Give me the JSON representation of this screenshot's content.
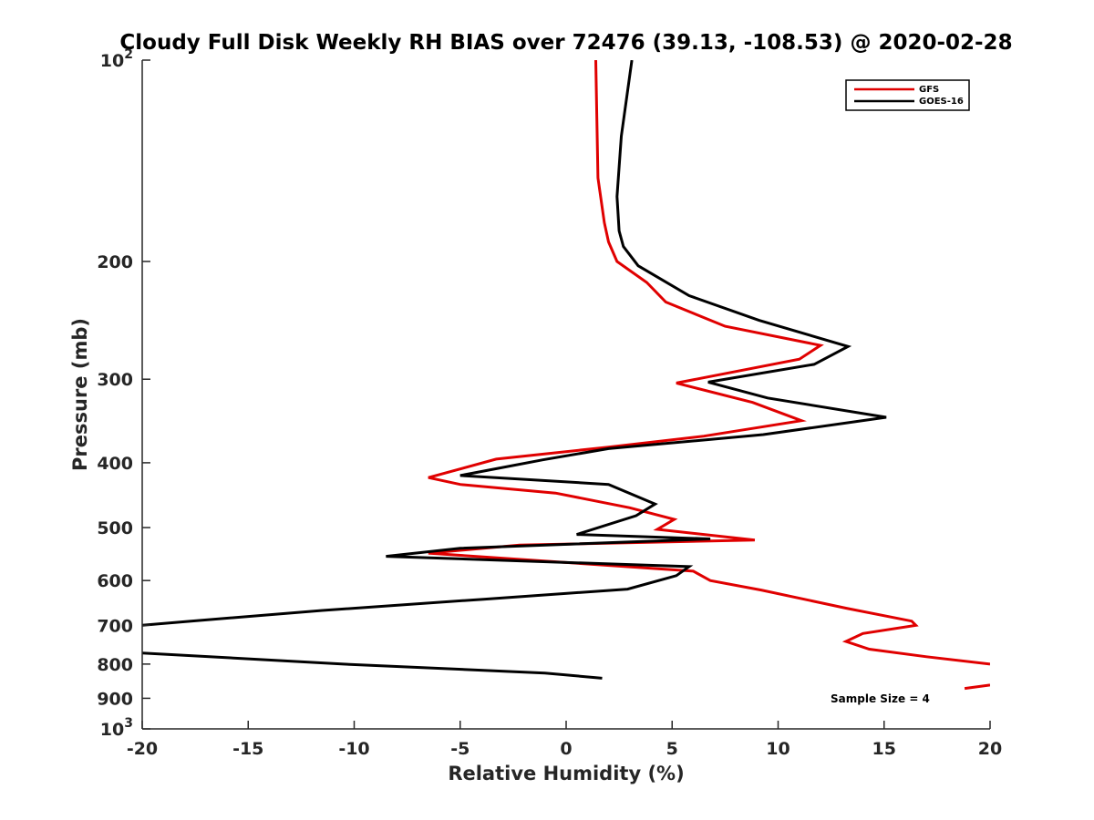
{
  "chart_data": {
    "type": "line",
    "title": "Cloudy Full Disk Weekly RH BIAS over 72476 (39.13, -108.53) @ 2020-02-28",
    "xlabel": "Relative Humidity (%)",
    "ylabel": "Pressure (mb)",
    "xlim": [
      -20,
      20
    ],
    "ylim": [
      100,
      1000
    ],
    "yscale": "log",
    "yreversed": true,
    "x_ticks": [
      "-20",
      "-15",
      "-10",
      "-5",
      "0",
      "5",
      "10",
      "15",
      "20"
    ],
    "y_ticks": [
      {
        "value": 100,
        "base": "10",
        "exp": "2"
      },
      {
        "value": 200,
        "label": "200"
      },
      {
        "value": 300,
        "label": "300"
      },
      {
        "value": 400,
        "label": "400"
      },
      {
        "value": 500,
        "label": "500"
      },
      {
        "value": 600,
        "label": "600"
      },
      {
        "value": 700,
        "label": "700"
      },
      {
        "value": 800,
        "label": "800"
      },
      {
        "value": 900,
        "label": "900"
      },
      {
        "value": 1000,
        "base": "10",
        "exp": "3"
      }
    ],
    "grid": false,
    "legend_position": "top-right",
    "annotation": "Sample Size = 4",
    "series": [
      {
        "name": "GFS",
        "color": "#e00000",
        "points": [
          [
            1.4,
            100
          ],
          [
            1.5,
            150
          ],
          [
            1.8,
            175
          ],
          [
            2.0,
            187
          ],
          [
            2.4,
            200
          ],
          [
            3.8,
            215
          ],
          [
            4.7,
            230
          ],
          [
            7.5,
            250
          ],
          [
            12.0,
            267
          ],
          [
            11.0,
            280
          ],
          [
            5.2,
            304
          ],
          [
            8.8,
            325
          ],
          [
            11.1,
            346
          ],
          [
            6.5,
            365
          ],
          [
            2.0,
            379
          ],
          [
            -3.3,
            395
          ],
          [
            -6.5,
            421
          ],
          [
            -5.0,
            431
          ],
          [
            -0.5,
            444
          ],
          [
            3.0,
            467
          ],
          [
            5.1,
            486
          ],
          [
            4.3,
            503
          ],
          [
            8.9,
            522
          ],
          [
            -2.2,
            531
          ],
          [
            -6.5,
            546
          ],
          [
            6.0,
            581
          ],
          [
            6.8,
            600
          ],
          [
            9.2,
            620
          ],
          [
            13.2,
            660
          ],
          [
            16.3,
            690
          ],
          [
            16.5,
            700
          ],
          [
            14.0,
            720
          ],
          [
            13.2,
            740
          ],
          [
            14.3,
            760
          ],
          [
            17.0,
            780
          ],
          [
            20.0,
            800
          ],
          null,
          [
            18.8,
            870
          ],
          [
            20.0,
            860
          ]
        ]
      },
      {
        "name": "GOES-16",
        "color": "#000000",
        "points": [
          [
            3.1,
            100
          ],
          [
            2.6,
            130
          ],
          [
            2.4,
            160
          ],
          [
            2.5,
            180
          ],
          [
            2.7,
            190
          ],
          [
            3.4,
            203
          ],
          [
            5.8,
            225
          ],
          [
            9.1,
            245
          ],
          [
            13.3,
            268
          ],
          [
            11.7,
            285
          ],
          [
            6.7,
            303
          ],
          [
            9.5,
            320
          ],
          [
            15.1,
            342
          ],
          [
            9.3,
            363
          ],
          [
            2.0,
            381
          ],
          [
            -1.1,
            396
          ],
          [
            -5.0,
            418
          ],
          [
            2.0,
            431
          ],
          [
            4.2,
            461
          ],
          [
            3.3,
            480
          ],
          [
            0.5,
            512
          ],
          [
            6.8,
            520
          ],
          [
            -5.0,
            537
          ],
          [
            -8.5,
            552
          ],
          [
            5.8,
            572
          ],
          [
            5.2,
            590
          ],
          [
            2.9,
            618
          ],
          [
            -3.9,
            640
          ],
          [
            -11.5,
            665
          ],
          [
            -17.7,
            690
          ],
          [
            -20.0,
            700
          ],
          null,
          [
            -20.0,
            770
          ],
          [
            -10.5,
            800
          ],
          [
            -1.0,
            825
          ],
          [
            1.7,
            840
          ]
        ]
      }
    ]
  }
}
